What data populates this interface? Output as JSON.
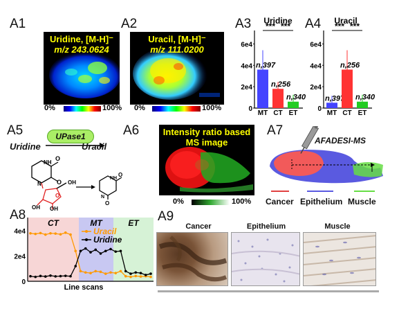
{
  "panels": {
    "A1": "A1",
    "A2": "A2",
    "A3": "A3",
    "A4": "A4",
    "A5": "A5",
    "A6": "A6",
    "A7": "A7",
    "A8": "A8",
    "A9": "A9"
  },
  "a1": {
    "title_line1": "Uridine, [M-H]⁻",
    "title_line2": "m/z 243.0624",
    "cb_min": "0%",
    "cb_max": "100%"
  },
  "a2": {
    "title_line1": "Uracil, [M-H]⁻",
    "title_line2": "m/z 111.0200",
    "cb_min": "0%",
    "cb_max": "100%"
  },
  "chart_data": [
    {
      "type": "bar",
      "title": "Uridine",
      "categories": [
        "MT",
        "CT",
        "ET"
      ],
      "values": [
        36000,
        18000,
        6000
      ],
      "n_labels": [
        "n,397",
        "n,256",
        "n,340"
      ],
      "yticks": [
        "0",
        "2e4",
        "4e4",
        "6e4"
      ],
      "ylim": [
        0,
        70000
      ],
      "significance": [
        "***",
        "***"
      ],
      "colors": [
        "#4444ff",
        "#ff3333",
        "#22cc22"
      ]
    },
    {
      "type": "bar",
      "title": "Uracil",
      "categories": [
        "MT",
        "CT",
        "ET"
      ],
      "values": [
        5000,
        36000,
        6000
      ],
      "n_labels": [
        "n,397",
        "n,256",
        "n,340"
      ],
      "yticks": [
        "0",
        "2e4",
        "4e4",
        "6e4"
      ],
      "ylim": [
        0,
        70000
      ],
      "significance": [
        "***",
        "***"
      ],
      "colors": [
        "#4444ff",
        "#ff3333",
        "#22cc22"
      ]
    },
    {
      "type": "line",
      "xlabel": "Line scans",
      "yticks": [
        "0",
        "2e4",
        "4e4"
      ],
      "ylim": [
        0,
        45000
      ],
      "regions": [
        "CT",
        "MT",
        "ET"
      ],
      "series": [
        {
          "name": "Uracil",
          "color": "#ff9900",
          "values": [
            38000,
            37500,
            38200,
            37000,
            38000,
            37800,
            37200,
            38500,
            37000,
            24000,
            8000,
            7000,
            6500,
            8000,
            7500,
            6000,
            7000,
            6500,
            8000,
            4000,
            3500,
            4200,
            3800,
            4000,
            3500
          ]
        },
        {
          "name": "Uridine",
          "color": "#000000",
          "values": [
            4000,
            3500,
            4200,
            3800,
            4500,
            3900,
            4100,
            4300,
            4000,
            12000,
            24000,
            26000,
            23000,
            25000,
            22000,
            24000,
            25500,
            23500,
            24000,
            8000,
            6000,
            7000,
            6500,
            5000,
            6000
          ]
        }
      ]
    }
  ],
  "a5": {
    "uridine": "Uridine",
    "enzyme": "UPase1",
    "uracil": "Uracil"
  },
  "a6": {
    "title_line1": "Intensity ratio based",
    "title_line2": "MS image",
    "cb_min": "0%",
    "cb_max": "100%"
  },
  "a7": {
    "method": "AFADESI-MS",
    "cancer": "Cancer",
    "epithelium": "Epithelium",
    "muscle": "Muscle"
  },
  "a9": {
    "cancer": "Cancer",
    "epithelium": "Epithelium",
    "muscle": "Muscle"
  }
}
